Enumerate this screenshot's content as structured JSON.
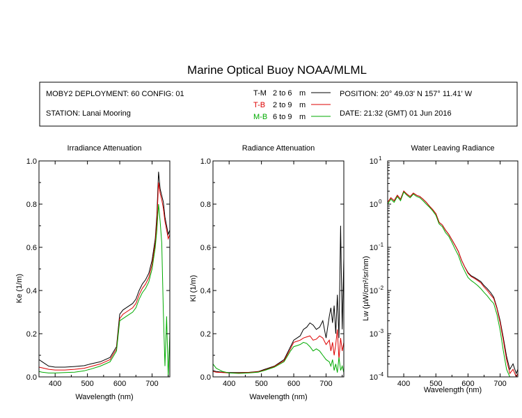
{
  "title": "Marine Optical Buoy NOAA/MLML",
  "info": {
    "deployment": "MOBY2 DEPLOYMENT: 60 CONFIG: 01",
    "station": "STATION: Lanai Mooring",
    "position": "POSITION: 20° 49.03' N   157° 11.41' W",
    "date": "DATE: 21:32 (GMT) 01 Jun 2016",
    "legend": [
      {
        "code": "T-M",
        "range": "2 to 6",
        "unit": "m",
        "color": "#000000"
      },
      {
        "code": "T-B",
        "range": "2 to 9",
        "unit": "m",
        "color": "#dd0000"
      },
      {
        "code": "M-B",
        "range": "6 to 9",
        "unit": "m",
        "color": "#00aa00"
      }
    ]
  },
  "chart_data": [
    {
      "type": "line",
      "title": "Irradiance Attenuation",
      "xlabel": "Wavelength (nm)",
      "ylabel": "Ke  (1/m)",
      "xlim": [
        350,
        755
      ],
      "ylim": [
        0,
        1.0
      ],
      "xticks": [
        400,
        500,
        600,
        700
      ],
      "yticks": [
        0.0,
        0.2,
        0.4,
        0.6,
        0.8,
        1.0
      ],
      "ytick_labels": [
        "0.0",
        "0.2",
        "0.4",
        "0.6",
        "0.8",
        "1.0"
      ],
      "series": [
        {
          "legend": "T-M",
          "color": "#000000",
          "x": [
            350,
            360,
            380,
            400,
            430,
            460,
            490,
            510,
            540,
            570,
            590,
            600,
            610,
            620,
            640,
            650,
            660,
            670,
            680,
            690,
            700,
            710,
            715,
            720,
            725,
            730,
            735,
            740,
            745,
            750,
            755
          ],
          "y": [
            0.08,
            0.07,
            0.05,
            0.045,
            0.045,
            0.048,
            0.052,
            0.06,
            0.07,
            0.09,
            0.14,
            0.29,
            0.31,
            0.32,
            0.34,
            0.36,
            0.4,
            0.43,
            0.45,
            0.48,
            0.54,
            0.64,
            0.75,
            0.95,
            0.87,
            0.84,
            0.81,
            0.74,
            0.7,
            0.66,
            0.68
          ]
        },
        {
          "legend": "T-B",
          "color": "#dd0000",
          "x": [
            350,
            360,
            380,
            400,
            430,
            460,
            490,
            510,
            540,
            570,
            590,
            600,
            610,
            620,
            640,
            650,
            660,
            670,
            680,
            690,
            700,
            710,
            715,
            720,
            725,
            730,
            735,
            740,
            745,
            750,
            755
          ],
          "y": [
            0.045,
            0.042,
            0.035,
            0.032,
            0.032,
            0.035,
            0.04,
            0.048,
            0.06,
            0.08,
            0.13,
            0.27,
            0.29,
            0.3,
            0.32,
            0.34,
            0.38,
            0.41,
            0.43,
            0.46,
            0.52,
            0.62,
            0.72,
            0.9,
            0.85,
            0.82,
            0.78,
            0.72,
            0.68,
            0.64,
            0.66
          ]
        },
        {
          "legend": "M-B",
          "color": "#00aa00",
          "x": [
            350,
            360,
            380,
            400,
            430,
            460,
            490,
            510,
            540,
            570,
            590,
            600,
            610,
            620,
            640,
            650,
            660,
            670,
            680,
            690,
            700,
            710,
            715,
            720,
            725,
            730,
            735,
            740,
            745,
            750,
            755
          ],
          "y": [
            0.025,
            0.022,
            0.018,
            0.018,
            0.02,
            0.022,
            0.028,
            0.036,
            0.05,
            0.07,
            0.12,
            0.26,
            0.27,
            0.28,
            0.3,
            0.32,
            0.36,
            0.39,
            0.41,
            0.44,
            0.5,
            0.6,
            0.68,
            0.8,
            0.72,
            0.62,
            0.3,
            0.05,
            0.28,
            0.0,
            0.2
          ]
        }
      ]
    },
    {
      "type": "line",
      "title": "Radiance Attenuation",
      "xlabel": "Wavelength (nm)",
      "ylabel": "Kl  (1/m)",
      "xlim": [
        350,
        755
      ],
      "ylim": [
        0,
        1.0
      ],
      "xticks": [
        400,
        500,
        600,
        700
      ],
      "yticks": [
        0.0,
        0.2,
        0.4,
        0.6,
        0.8,
        1.0
      ],
      "ytick_labels": [
        "0.0",
        "0.2",
        "0.4",
        "0.6",
        "0.8",
        "1.0"
      ],
      "series": [
        {
          "legend": "T-M",
          "color": "#000000",
          "x": [
            350,
            360,
            380,
            400,
            430,
            460,
            490,
            510,
            540,
            570,
            590,
            600,
            610,
            620,
            630,
            640,
            650,
            660,
            670,
            680,
            690,
            700,
            710,
            715,
            720,
            725,
            730,
            735,
            740,
            745,
            750,
            755
          ],
          "y": [
            0.03,
            0.025,
            0.022,
            0.02,
            0.02,
            0.021,
            0.025,
            0.035,
            0.05,
            0.08,
            0.14,
            0.17,
            0.18,
            0.19,
            0.22,
            0.23,
            0.25,
            0.24,
            0.22,
            0.23,
            0.26,
            0.18,
            0.28,
            0.32,
            0.25,
            0.33,
            0.2,
            0.38,
            0.18,
            0.7,
            0.22,
            0.55
          ]
        },
        {
          "legend": "T-B",
          "color": "#dd0000",
          "x": [
            350,
            360,
            380,
            400,
            430,
            460,
            490,
            510,
            540,
            570,
            590,
            600,
            610,
            620,
            630,
            640,
            650,
            660,
            670,
            680,
            690,
            700,
            710,
            715,
            720,
            725,
            730,
            735,
            740,
            745,
            750,
            755
          ],
          "y": [
            0.025,
            0.022,
            0.02,
            0.018,
            0.018,
            0.02,
            0.024,
            0.032,
            0.048,
            0.075,
            0.13,
            0.16,
            0.165,
            0.17,
            0.18,
            0.185,
            0.19,
            0.17,
            0.175,
            0.19,
            0.18,
            0.15,
            0.17,
            0.12,
            0.16,
            0.1,
            0.15,
            0.22,
            0.08,
            0.18,
            0.12,
            0.16
          ]
        },
        {
          "legend": "M-B",
          "color": "#00aa00",
          "x": [
            350,
            360,
            380,
            400,
            430,
            460,
            490,
            510,
            540,
            570,
            590,
            600,
            610,
            620,
            630,
            640,
            650,
            660,
            670,
            680,
            690,
            700,
            710,
            715,
            720,
            725,
            730,
            735,
            740,
            745,
            750,
            755
          ],
          "y": [
            0.06,
            0.04,
            0.025,
            0.018,
            0.016,
            0.018,
            0.022,
            0.03,
            0.045,
            0.07,
            0.12,
            0.14,
            0.145,
            0.15,
            0.16,
            0.155,
            0.14,
            0.12,
            0.13,
            0.12,
            0.1,
            0.08,
            0.07,
            0.05,
            0.08,
            0.03,
            0.06,
            0.02,
            0.09,
            0.03,
            0.05,
            0.02
          ]
        }
      ]
    },
    {
      "type": "line",
      "title": "Water Leaving Radiance",
      "xlabel": "Wavelength (nm)",
      "ylabel": "Lw  (µW/cm²/sr/nm)",
      "log_y": true,
      "xlim": [
        350,
        755
      ],
      "ylim": [
        0.0001,
        10
      ],
      "xticks": [
        400,
        500,
        600,
        700
      ],
      "yticks": [
        0.0001,
        0.001,
        0.01,
        0.1,
        1,
        10
      ],
      "ytick_labels": [
        {
          "base": "10",
          "exp": "-4"
        },
        {
          "base": "10",
          "exp": "-3"
        },
        {
          "base": "10",
          "exp": "-2"
        },
        {
          "base": "10",
          "exp": "-1"
        },
        {
          "base": "10",
          "exp": "0"
        },
        {
          "base": "10",
          "exp": "1"
        }
      ],
      "series": [
        {
          "legend": "T-M",
          "color": "#000000",
          "x": [
            350,
            360,
            370,
            380,
            390,
            400,
            410,
            420,
            430,
            440,
            450,
            460,
            470,
            480,
            490,
            500,
            510,
            520,
            530,
            540,
            550,
            560,
            570,
            580,
            590,
            600,
            610,
            620,
            630,
            640,
            650,
            660,
            670,
            680,
            690,
            700,
            710,
            720,
            730,
            740,
            750,
            755
          ],
          "y": [
            1.1,
            1.4,
            1.2,
            1.6,
            1.3,
            2.0,
            1.7,
            1.5,
            1.8,
            1.6,
            1.5,
            1.3,
            1.1,
            0.9,
            0.75,
            0.6,
            0.38,
            0.33,
            0.25,
            0.2,
            0.15,
            0.11,
            0.08,
            0.05,
            0.035,
            0.026,
            0.022,
            0.02,
            0.018,
            0.016,
            0.013,
            0.011,
            0.009,
            0.007,
            0.004,
            0.002,
            0.0008,
            0.0003,
            0.00015,
            0.0002,
            0.00012,
            0.00015
          ]
        },
        {
          "legend": "T-B",
          "color": "#dd0000",
          "x": [
            350,
            360,
            370,
            380,
            390,
            400,
            410,
            420,
            430,
            440,
            450,
            460,
            470,
            480,
            490,
            500,
            510,
            520,
            530,
            540,
            550,
            560,
            570,
            580,
            590,
            600,
            610,
            620,
            630,
            640,
            650,
            660,
            670,
            680,
            690,
            700,
            710,
            720,
            730,
            740,
            750,
            755
          ],
          "y": [
            1.1,
            1.4,
            1.2,
            1.6,
            1.3,
            2.0,
            1.7,
            1.5,
            1.8,
            1.6,
            1.5,
            1.3,
            1.1,
            0.9,
            0.75,
            0.6,
            0.38,
            0.33,
            0.25,
            0.2,
            0.15,
            0.11,
            0.08,
            0.05,
            0.035,
            0.025,
            0.021,
            0.019,
            0.017,
            0.015,
            0.012,
            0.01,
            0.008,
            0.0065,
            0.0038,
            0.0018,
            0.0007,
            0.00025,
            0.00012,
            0.00015,
            0.0001,
            0.00012
          ]
        },
        {
          "legend": "M-B",
          "color": "#00aa00",
          "x": [
            350,
            360,
            370,
            380,
            390,
            400,
            410,
            420,
            430,
            440,
            450,
            460,
            470,
            480,
            490,
            500,
            510,
            520,
            530,
            540,
            550,
            560,
            570,
            580,
            590,
            600,
            610,
            620,
            630,
            640,
            650,
            660,
            670,
            680,
            690,
            700,
            710,
            720,
            730,
            740,
            750,
            755
          ],
          "y": [
            1.0,
            1.3,
            1.1,
            1.5,
            1.2,
            1.9,
            1.6,
            1.4,
            1.7,
            1.5,
            1.4,
            1.2,
            1.0,
            0.85,
            0.7,
            0.55,
            0.35,
            0.3,
            0.22,
            0.18,
            0.13,
            0.09,
            0.065,
            0.04,
            0.028,
            0.02,
            0.017,
            0.015,
            0.013,
            0.011,
            0.009,
            0.0075,
            0.006,
            0.005,
            0.0028,
            0.0012,
            0.0004,
            0.00015,
            0.0001,
            0.0001,
            0.0001,
            0.0001
          ]
        }
      ]
    }
  ]
}
